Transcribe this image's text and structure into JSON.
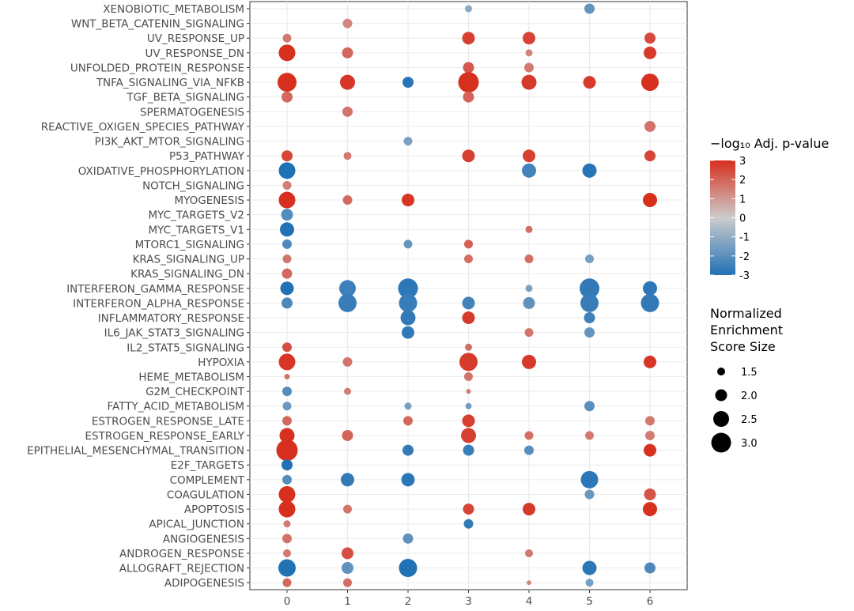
{
  "chart_data": {
    "type": "scatter",
    "x_categories": [
      "0",
      "1",
      "2",
      "3",
      "4",
      "5",
      "6"
    ],
    "y_categories": [
      "XENOBIOTIC_METABOLISM",
      "WNT_BETA_CATENIN_SIGNALING",
      "UV_RESPONSE_UP",
      "UV_RESPONSE_DN",
      "UNFOLDED_PROTEIN_RESPONSE",
      "TNFA_SIGNALING_VIA_NFKB",
      "TGF_BETA_SIGNALING",
      "SPERMATOGENESIS",
      "REACTIVE_OXIGEN_SPECIES_PATHWAY",
      "PI3K_AKT_MTOR_SIGNALING",
      "P53_PATHWAY",
      "OXIDATIVE_PHOSPHORYLATION",
      "NOTCH_SIGNALING",
      "MYOGENESIS",
      "MYC_TARGETS_V2",
      "MYC_TARGETS_V1",
      "MTORC1_SIGNALING",
      "KRAS_SIGNALING_UP",
      "KRAS_SIGNALING_DN",
      "INTERFERON_GAMMA_RESPONSE",
      "INTERFERON_ALPHA_RESPONSE",
      "INFLAMMATORY_RESPONSE",
      "IL6_JAK_STAT3_SIGNALING",
      "IL2_STAT5_SIGNALING",
      "HYPOXIA",
      "HEME_METABOLISM",
      "G2M_CHECKPOINT",
      "FATTY_ACID_METABOLISM",
      "ESTROGEN_RESPONSE_LATE",
      "ESTROGEN_RESPONSE_EARLY",
      "EPITHELIAL_MESENCHYMAL_TRANSITION",
      "E2F_TARGETS",
      "COMPLEMENT",
      "COAGULATION",
      "APOPTOSIS",
      "APICAL_JUNCTION",
      "ANGIOGENESIS",
      "ANDROGEN_RESPONSE",
      "ALLOGRAFT_REJECTION",
      "ADIPOGENESIS"
    ],
    "points_format": [
      "x_category",
      "y_category",
      "signed_neg_log10_adj_p",
      "normalized_enrichment_score_size"
    ],
    "points": [
      [
        "3",
        "XENOBIOTIC_METABOLISM",
        -1.2,
        1.4
      ],
      [
        "5",
        "XENOBIOTIC_METABOLISM",
        -1.8,
        1.8
      ],
      [
        "1",
        "WNT_BETA_CATENIN_SIGNALING",
        1.3,
        1.7
      ],
      [
        "0",
        "UV_RESPONSE_UP",
        1.6,
        1.6
      ],
      [
        "3",
        "UV_RESPONSE_UP",
        2.7,
        2.1
      ],
      [
        "4",
        "UV_RESPONSE_UP",
        2.6,
        2.1
      ],
      [
        "6",
        "UV_RESPONSE_UP",
        2.5,
        1.9
      ],
      [
        "0",
        "UV_RESPONSE_DN",
        3.0,
        2.6
      ],
      [
        "1",
        "UV_RESPONSE_DN",
        1.9,
        1.9
      ],
      [
        "4",
        "UV_RESPONSE_DN",
        1.4,
        1.4
      ],
      [
        "6",
        "UV_RESPONSE_DN",
        2.8,
        2.1
      ],
      [
        "3",
        "UNFOLDED_PROTEIN_RESPONSE",
        2.2,
        1.9
      ],
      [
        "4",
        "UNFOLDED_PROTEIN_RESPONSE",
        1.6,
        1.7
      ],
      [
        "0",
        "TNFA_SIGNALING_VIA_NFKB",
        3.0,
        2.9
      ],
      [
        "1",
        "TNFA_SIGNALING_VIA_NFKB",
        2.9,
        2.4
      ],
      [
        "2",
        "TNFA_SIGNALING_VIA_NFKB",
        -2.9,
        1.9
      ],
      [
        "3",
        "TNFA_SIGNALING_VIA_NFKB",
        3.0,
        3.1
      ],
      [
        "4",
        "TNFA_SIGNALING_VIA_NFKB",
        2.8,
        2.4
      ],
      [
        "5",
        "TNFA_SIGNALING_VIA_NFKB",
        2.8,
        2.1
      ],
      [
        "6",
        "TNFA_SIGNALING_VIA_NFKB",
        3.0,
        2.7
      ],
      [
        "0",
        "TGF_BETA_SIGNALING",
        1.9,
        1.9
      ],
      [
        "3",
        "TGF_BETA_SIGNALING",
        2.0,
        1.9
      ],
      [
        "1",
        "SPERMATOGENESIS",
        1.7,
        1.8
      ],
      [
        "6",
        "REACTIVE_OXIGEN_SPECIES_PATHWAY",
        1.7,
        1.9
      ],
      [
        "2",
        "PI3K_AKT_MTOR_SIGNALING",
        -1.4,
        1.6
      ],
      [
        "0",
        "P53_PATHWAY",
        2.6,
        1.9
      ],
      [
        "1",
        "P53_PATHWAY",
        1.6,
        1.5
      ],
      [
        "3",
        "P53_PATHWAY",
        2.7,
        2.1
      ],
      [
        "4",
        "P53_PATHWAY",
        2.7,
        2.1
      ],
      [
        "6",
        "P53_PATHWAY",
        2.6,
        1.9
      ],
      [
        "0",
        "OXIDATIVE_PHOSPHORYLATION",
        -3.0,
        2.6
      ],
      [
        "4",
        "OXIDATIVE_PHOSPHORYLATION",
        -2.4,
        2.3
      ],
      [
        "5",
        "OXIDATIVE_PHOSPHORYLATION",
        -2.9,
        2.3
      ],
      [
        "0",
        "NOTCH_SIGNALING",
        1.5,
        1.6
      ],
      [
        "0",
        "MYOGENESIS",
        3.0,
        2.6
      ],
      [
        "1",
        "MYOGENESIS",
        1.9,
        1.7
      ],
      [
        "2",
        "MYOGENESIS",
        2.9,
        2.1
      ],
      [
        "6",
        "MYOGENESIS",
        3.0,
        2.3
      ],
      [
        "0",
        "MYC_TARGETS_V2",
        -2.1,
        2.0
      ],
      [
        "0",
        "MYC_TARGETS_V1",
        -3.0,
        2.3
      ],
      [
        "4",
        "MYC_TARGETS_V1",
        1.8,
        1.4
      ],
      [
        "0",
        "MTORC1_SIGNALING",
        -2.2,
        1.7
      ],
      [
        "2",
        "MTORC1_SIGNALING",
        -1.8,
        1.6
      ],
      [
        "3",
        "MTORC1_SIGNALING",
        2.1,
        1.6
      ],
      [
        "0",
        "KRAS_SIGNALING_UP",
        1.7,
        1.6
      ],
      [
        "3",
        "KRAS_SIGNALING_UP",
        1.8,
        1.6
      ],
      [
        "4",
        "KRAS_SIGNALING_UP",
        1.8,
        1.6
      ],
      [
        "5",
        "KRAS_SIGNALING_UP",
        -1.5,
        1.6
      ],
      [
        "0",
        "KRAS_SIGNALING_DN",
        1.9,
        1.8
      ],
      [
        "0",
        "INTERFERON_GAMMA_RESPONSE",
        -3.0,
        2.2
      ],
      [
        "1",
        "INTERFERON_GAMMA_RESPONSE",
        -2.5,
        2.6
      ],
      [
        "2",
        "INTERFERON_GAMMA_RESPONSE",
        -2.8,
        3.0
      ],
      [
        "4",
        "INTERFERON_GAMMA_RESPONSE",
        -1.4,
        1.4
      ],
      [
        "5",
        "INTERFERON_GAMMA_RESPONSE",
        -2.7,
        3.0
      ],
      [
        "6",
        "INTERFERON_GAMMA_RESPONSE",
        -2.8,
        2.3
      ],
      [
        "0",
        "INTERFERON_ALPHA_RESPONSE",
        -2.2,
        1.9
      ],
      [
        "1",
        "INTERFERON_ALPHA_RESPONSE",
        -2.6,
        2.8
      ],
      [
        "2",
        "INTERFERON_ALPHA_RESPONSE",
        -2.6,
        2.8
      ],
      [
        "3",
        "INTERFERON_ALPHA_RESPONSE",
        -2.4,
        2.1
      ],
      [
        "4",
        "INTERFERON_ALPHA_RESPONSE",
        -1.9,
        2.0
      ],
      [
        "5",
        "INTERFERON_ALPHA_RESPONSE",
        -2.6,
        2.8
      ],
      [
        "6",
        "INTERFERON_ALPHA_RESPONSE",
        -2.7,
        2.8
      ],
      [
        "2",
        "INFLAMMATORY_RESPONSE",
        -2.7,
        2.4
      ],
      [
        "3",
        "INFLAMMATORY_RESPONSE",
        2.8,
        2.1
      ],
      [
        "5",
        "INFLAMMATORY_RESPONSE",
        -2.5,
        1.9
      ],
      [
        "2",
        "IL6_JAK_STAT3_SIGNALING",
        -2.7,
        2.1
      ],
      [
        "4",
        "IL6_JAK_STAT3_SIGNALING",
        1.7,
        1.6
      ],
      [
        "5",
        "IL6_JAK_STAT3_SIGNALING",
        -1.8,
        1.8
      ],
      [
        "0",
        "IL2_STAT5_SIGNALING",
        2.4,
        1.7
      ],
      [
        "3",
        "IL2_STAT5_SIGNALING",
        1.8,
        1.4
      ],
      [
        "0",
        "HYPOXIA",
        2.9,
        2.6
      ],
      [
        "1",
        "HYPOXIA",
        1.7,
        1.7
      ],
      [
        "3",
        "HYPOXIA",
        2.8,
        2.8
      ],
      [
        "4",
        "HYPOXIA",
        2.8,
        2.3
      ],
      [
        "6",
        "HYPOXIA",
        2.9,
        2.1
      ],
      [
        "0",
        "HEME_METABOLISM",
        1.7,
        1.2
      ],
      [
        "3",
        "HEME_METABOLISM",
        1.7,
        1.6
      ],
      [
        "0",
        "G2M_CHECKPOINT",
        -2.1,
        1.7
      ],
      [
        "1",
        "G2M_CHECKPOINT",
        1.5,
        1.4
      ],
      [
        "3",
        "G2M_CHECKPOINT",
        1.5,
        1.1
      ],
      [
        "0",
        "FATTY_ACID_METABOLISM",
        -1.7,
        1.6
      ],
      [
        "2",
        "FATTY_ACID_METABOLISM",
        -1.5,
        1.4
      ],
      [
        "3",
        "FATTY_ACID_METABOLISM",
        -1.5,
        1.3
      ],
      [
        "5",
        "FATTY_ACID_METABOLISM",
        -2.0,
        1.8
      ],
      [
        "0",
        "ESTROGEN_RESPONSE_LATE",
        1.9,
        1.7
      ],
      [
        "2",
        "ESTROGEN_RESPONSE_LATE",
        1.9,
        1.7
      ],
      [
        "3",
        "ESTROGEN_RESPONSE_LATE",
        2.7,
        2.1
      ],
      [
        "6",
        "ESTROGEN_RESPONSE_LATE",
        1.6,
        1.7
      ],
      [
        "0",
        "ESTROGEN_RESPONSE_EARLY",
        3.0,
        2.4
      ],
      [
        "1",
        "ESTROGEN_RESPONSE_EARLY",
        2.0,
        1.9
      ],
      [
        "3",
        "ESTROGEN_RESPONSE_EARLY",
        2.7,
        2.4
      ],
      [
        "4",
        "ESTROGEN_RESPONSE_EARLY",
        1.8,
        1.6
      ],
      [
        "5",
        "ESTROGEN_RESPONSE_EARLY",
        1.6,
        1.6
      ],
      [
        "6",
        "ESTROGEN_RESPONSE_EARLY",
        1.5,
        1.7
      ],
      [
        "0",
        "EPITHELIAL_MESENCHYMAL_TRANSITION",
        3.0,
        3.2
      ],
      [
        "2",
        "EPITHELIAL_MESENCHYMAL_TRANSITION",
        -2.7,
        1.9
      ],
      [
        "3",
        "EPITHELIAL_MESENCHYMAL_TRANSITION",
        -2.6,
        1.9
      ],
      [
        "4",
        "EPITHELIAL_MESENCHYMAL_TRANSITION",
        -2.0,
        1.7
      ],
      [
        "6",
        "EPITHELIAL_MESENCHYMAL_TRANSITION",
        3.0,
        2.1
      ],
      [
        "0",
        "E2F_TARGETS",
        -3.0,
        1.9
      ],
      [
        "0",
        "COMPLEMENT",
        -2.1,
        1.7
      ],
      [
        "1",
        "COMPLEMENT",
        -2.7,
        2.2
      ],
      [
        "2",
        "COMPLEMENT",
        -2.8,
        2.2
      ],
      [
        "5",
        "COMPLEMENT",
        -2.8,
        2.7
      ],
      [
        "0",
        "COAGULATION",
        3.0,
        2.6
      ],
      [
        "5",
        "COAGULATION",
        -1.7,
        1.7
      ],
      [
        "6",
        "COAGULATION",
        2.3,
        2.0
      ],
      [
        "0",
        "APOPTOSIS",
        3.0,
        2.6
      ],
      [
        "1",
        "APOPTOSIS",
        1.7,
        1.6
      ],
      [
        "3",
        "APOPTOSIS",
        2.6,
        1.9
      ],
      [
        "4",
        "APOPTOSIS",
        2.8,
        2.1
      ],
      [
        "6",
        "APOPTOSIS",
        3.0,
        2.3
      ],
      [
        "0",
        "APICAL_JUNCTION",
        1.6,
        1.4
      ],
      [
        "3",
        "APICAL_JUNCTION",
        -2.7,
        1.7
      ],
      [
        "0",
        "ANGIOGENESIS",
        1.7,
        1.7
      ],
      [
        "2",
        "ANGIOGENESIS",
        -1.9,
        1.8
      ],
      [
        "0",
        "ANDROGEN_RESPONSE",
        1.6,
        1.5
      ],
      [
        "1",
        "ANDROGEN_RESPONSE",
        2.4,
        2.0
      ],
      [
        "4",
        "ANDROGEN_RESPONSE",
        1.6,
        1.5
      ],
      [
        "0",
        "ALLOGRAFT_REJECTION",
        -3.0,
        2.7
      ],
      [
        "1",
        "ALLOGRAFT_REJECTION",
        -1.9,
        2.0
      ],
      [
        "2",
        "ALLOGRAFT_REJECTION",
        -3.0,
        2.8
      ],
      [
        "5",
        "ALLOGRAFT_REJECTION",
        -2.8,
        2.3
      ],
      [
        "6",
        "ALLOGRAFT_REJECTION",
        -2.2,
        1.9
      ],
      [
        "0",
        "ADIPOGENESIS",
        1.9,
        1.6
      ],
      [
        "1",
        "ADIPOGENESIS",
        1.8,
        1.6
      ],
      [
        "4",
        "ADIPOGENESIS",
        1.3,
        1.1
      ],
      [
        "5",
        "ADIPOGENESIS",
        -1.5,
        1.5
      ]
    ],
    "color_legend": {
      "title": "−log₁₀ Adj. p-value",
      "ticks": [
        3,
        2,
        1,
        0,
        -1,
        -2,
        -3
      ],
      "tick_labels": [
        "3",
        "2",
        "1",
        "0",
        "-1",
        "-2",
        "-3"
      ],
      "range": [
        -3,
        3
      ],
      "colors": {
        "low": "#2171b5",
        "mid": "#cccccc",
        "high": "#d7301f"
      }
    },
    "size_legend": {
      "title_lines": [
        "Normalized",
        "Enrichment",
        "Score Size"
      ],
      "values": [
        1.5,
        2.0,
        2.5,
        3.0
      ],
      "labels": [
        "1.5",
        "2.0",
        "2.5",
        "3.0"
      ]
    },
    "grid": true,
    "legend_position": "right"
  }
}
